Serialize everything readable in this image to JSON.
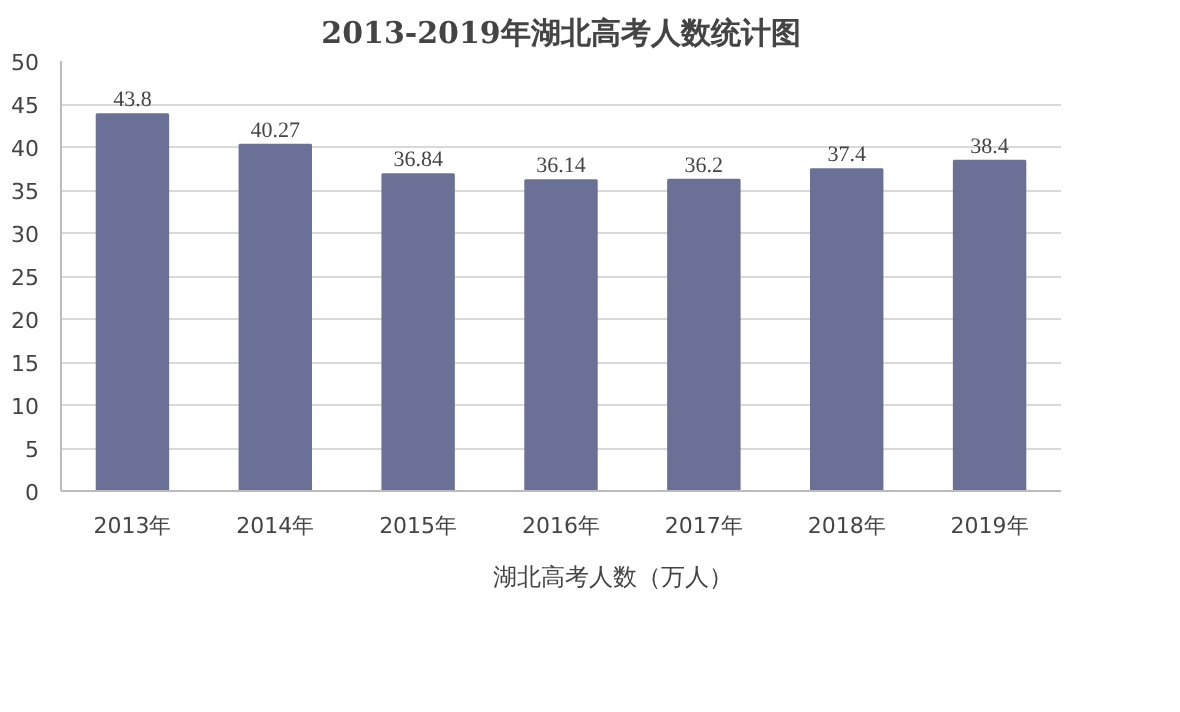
{
  "chart_data": {
    "type": "bar",
    "title": "2013-2019年湖北高考人数统计图",
    "categories": [
      "2013年",
      "2014年",
      "2015年",
      "2016年",
      "2017年",
      "2018年",
      "2019年"
    ],
    "series": [
      {
        "name": "湖北高考人数（万人）",
        "color": "#6b7196",
        "values": [
          43.8,
          40.27,
          36.84,
          36.14,
          36.2,
          37.4,
          38.4
        ]
      }
    ],
    "ylim": [
      0,
      50
    ],
    "yticks": [
      0,
      5,
      10,
      15,
      20,
      25,
      30,
      35,
      40,
      45,
      50
    ],
    "grid": "y",
    "legend": "bottom",
    "data_labels": true
  }
}
